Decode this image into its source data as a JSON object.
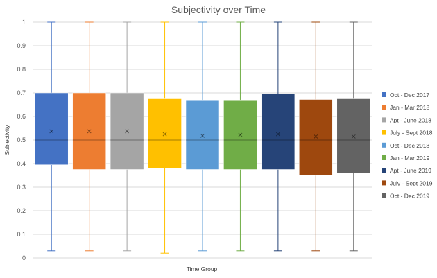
{
  "chart_data": {
    "type": "boxplot",
    "title": "Subjectivity over Time",
    "xlabel": "Time Group",
    "ylabel": "Subjectivity",
    "ylim": [
      0,
      1
    ],
    "yticks": [
      0,
      0.1,
      0.2,
      0.3,
      0.4,
      0.5,
      0.6,
      0.7,
      0.8,
      0.9,
      1
    ],
    "ytick_labels": [
      "0",
      "0.1",
      "0.2",
      "0.3",
      "0.4",
      "0.5",
      "0.6",
      "0.7",
      "0.8",
      "0.9",
      "1"
    ],
    "grid": true,
    "legend_position": "right",
    "series": [
      {
        "name": "Oct - Dec 2017",
        "color": "#4472C4",
        "min": 0.03,
        "q1": 0.395,
        "median": 0.5,
        "q3": 0.7,
        "max": 1.0,
        "mean": 0.537
      },
      {
        "name": "Jan - Mar 2018",
        "color": "#ED7D31",
        "min": 0.03,
        "q1": 0.375,
        "median": 0.5,
        "q3": 0.7,
        "max": 1.0,
        "mean": 0.537
      },
      {
        "name": "Apt - June 2018",
        "color": "#A5A5A5",
        "min": 0.03,
        "q1": 0.375,
        "median": 0.5,
        "q3": 0.7,
        "max": 1.0,
        "mean": 0.537
      },
      {
        "name": "July - Sept 2018",
        "color": "#FFC000",
        "min": 0.02,
        "q1": 0.38,
        "median": 0.5,
        "q3": 0.675,
        "max": 1.0,
        "mean": 0.525
      },
      {
        "name": "Oct - Dec 2018",
        "color": "#5B9BD5",
        "min": 0.03,
        "q1": 0.375,
        "median": 0.5,
        "q3": 0.67,
        "max": 1.0,
        "mean": 0.518
      },
      {
        "name": "Jan - Mar 2019",
        "color": "#70AD47",
        "min": 0.03,
        "q1": 0.375,
        "median": 0.5,
        "q3": 0.67,
        "max": 1.0,
        "mean": 0.522
      },
      {
        "name": "Apt - June 2019",
        "color": "#264478",
        "min": 0.03,
        "q1": 0.375,
        "median": 0.5,
        "q3": 0.695,
        "max": 1.0,
        "mean": 0.525
      },
      {
        "name": "July - Sept 2019",
        "color": "#9E480E",
        "min": 0.03,
        "q1": 0.35,
        "median": 0.5,
        "q3": 0.672,
        "max": 1.0,
        "mean": 0.515
      },
      {
        "name": "Oct - Dec 2019",
        "color": "#636363",
        "min": 0.03,
        "q1": 0.36,
        "median": 0.5,
        "q3": 0.675,
        "max": 1.0,
        "mean": 0.515
      }
    ]
  }
}
